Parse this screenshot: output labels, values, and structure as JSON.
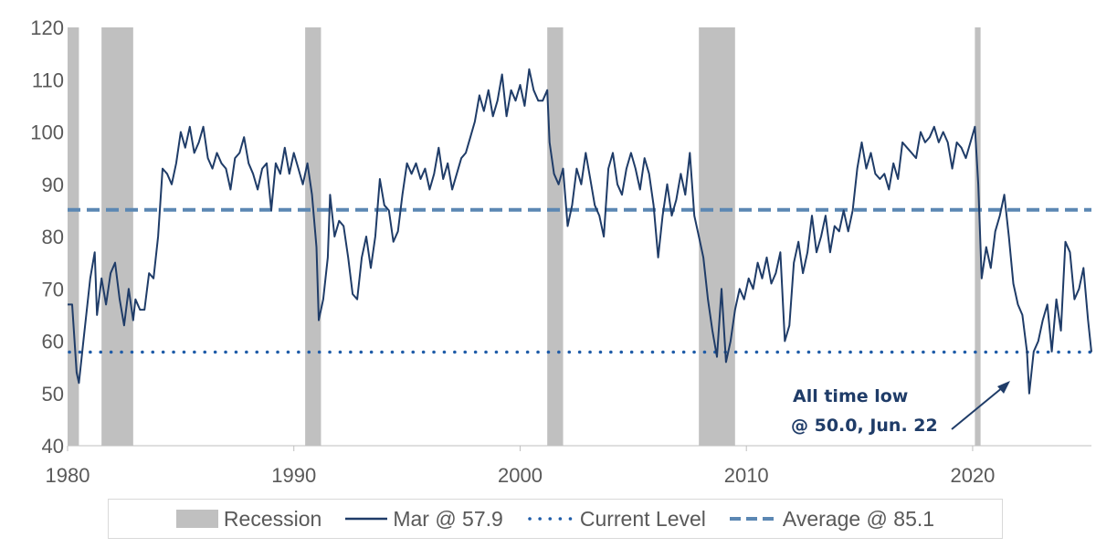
{
  "chart_data": {
    "type": "line",
    "title": "",
    "xlabel": "",
    "ylabel": "",
    "xlim": [
      1980,
      2025.25
    ],
    "ylim": [
      40,
      120
    ],
    "yticks": [
      40,
      50,
      60,
      70,
      80,
      90,
      100,
      110,
      120
    ],
    "xticks": [
      1980,
      1990,
      2000,
      2010,
      2020
    ],
    "ytick_labels": [
      "40",
      "50",
      "60",
      "70",
      "80",
      "90",
      "100",
      "110",
      "120"
    ],
    "xtick_labels": [
      "1980",
      "1990",
      "2000",
      "2010",
      "2020"
    ],
    "recessions": [
      [
        1980.0,
        1980.5
      ],
      [
        1981.5,
        1982.9
      ],
      [
        1990.5,
        1991.2
      ],
      [
        2001.2,
        2001.9
      ],
      [
        2007.9,
        2009.5
      ],
      [
        2020.1,
        2020.35
      ]
    ],
    "series": [
      {
        "name": "Mar @ 57.9",
        "style": "solid",
        "color": "#1f3c68",
        "points": [
          [
            1980.0,
            67
          ],
          [
            1980.2,
            67
          ],
          [
            1980.4,
            54
          ],
          [
            1980.5,
            52
          ],
          [
            1980.7,
            60
          ],
          [
            1981.0,
            72
          ],
          [
            1981.2,
            77
          ],
          [
            1981.3,
            65
          ],
          [
            1981.5,
            72
          ],
          [
            1981.7,
            67
          ],
          [
            1981.9,
            73
          ],
          [
            1982.1,
            75
          ],
          [
            1982.3,
            68
          ],
          [
            1982.5,
            63
          ],
          [
            1982.7,
            70
          ],
          [
            1982.9,
            64
          ],
          [
            1983.0,
            68
          ],
          [
            1983.2,
            66
          ],
          [
            1983.4,
            66
          ],
          [
            1983.6,
            73
          ],
          [
            1983.8,
            72
          ],
          [
            1984.0,
            80
          ],
          [
            1984.2,
            93
          ],
          [
            1984.4,
            92
          ],
          [
            1984.6,
            90
          ],
          [
            1984.8,
            94
          ],
          [
            1985.0,
            100
          ],
          [
            1985.2,
            97
          ],
          [
            1985.4,
            101
          ],
          [
            1985.6,
            96
          ],
          [
            1985.8,
            98
          ],
          [
            1986.0,
            101
          ],
          [
            1986.2,
            95
          ],
          [
            1986.4,
            93
          ],
          [
            1986.6,
            96
          ],
          [
            1986.8,
            94
          ],
          [
            1987.0,
            93
          ],
          [
            1987.2,
            89
          ],
          [
            1987.4,
            95
          ],
          [
            1987.6,
            96
          ],
          [
            1987.8,
            99
          ],
          [
            1988.0,
            94
          ],
          [
            1988.2,
            92
          ],
          [
            1988.4,
            89
          ],
          [
            1988.6,
            93
          ],
          [
            1988.8,
            94
          ],
          [
            1989.0,
            85
          ],
          [
            1989.2,
            94
          ],
          [
            1989.4,
            92
          ],
          [
            1989.6,
            97
          ],
          [
            1989.8,
            92
          ],
          [
            1990.0,
            96
          ],
          [
            1990.2,
            93
          ],
          [
            1990.4,
            90
          ],
          [
            1990.6,
            94
          ],
          [
            1990.8,
            88
          ],
          [
            1991.0,
            78
          ],
          [
            1991.1,
            64
          ],
          [
            1991.3,
            68
          ],
          [
            1991.5,
            76
          ],
          [
            1991.6,
            88
          ],
          [
            1991.8,
            80
          ],
          [
            1992.0,
            83
          ],
          [
            1992.2,
            82
          ],
          [
            1992.4,
            76
          ],
          [
            1992.6,
            69
          ],
          [
            1992.8,
            68
          ],
          [
            1993.0,
            76
          ],
          [
            1993.2,
            80
          ],
          [
            1993.4,
            74
          ],
          [
            1993.6,
            80
          ],
          [
            1993.8,
            91
          ],
          [
            1994.0,
            86
          ],
          [
            1994.2,
            85
          ],
          [
            1994.4,
            79
          ],
          [
            1994.6,
            81
          ],
          [
            1994.8,
            88
          ],
          [
            1995.0,
            94
          ],
          [
            1995.2,
            92
          ],
          [
            1995.4,
            94
          ],
          [
            1995.6,
            91
          ],
          [
            1995.8,
            93
          ],
          [
            1996.0,
            89
          ],
          [
            1996.2,
            92
          ],
          [
            1996.4,
            97
          ],
          [
            1996.6,
            91
          ],
          [
            1996.8,
            94
          ],
          [
            1997.0,
            89
          ],
          [
            1997.2,
            92
          ],
          [
            1997.4,
            95
          ],
          [
            1997.6,
            96
          ],
          [
            1997.8,
            99
          ],
          [
            1998.0,
            102
          ],
          [
            1998.2,
            107
          ],
          [
            1998.4,
            104
          ],
          [
            1998.6,
            108
          ],
          [
            1998.8,
            103
          ],
          [
            1999.0,
            106
          ],
          [
            1999.2,
            111
          ],
          [
            1999.4,
            103
          ],
          [
            1999.6,
            108
          ],
          [
            1999.8,
            106
          ],
          [
            2000.0,
            109
          ],
          [
            2000.2,
            105
          ],
          [
            2000.4,
            112
          ],
          [
            2000.6,
            108
          ],
          [
            2000.8,
            106
          ],
          [
            2001.0,
            106
          ],
          [
            2001.2,
            108
          ],
          [
            2001.3,
            98
          ],
          [
            2001.5,
            92
          ],
          [
            2001.7,
            90
          ],
          [
            2001.9,
            93
          ],
          [
            2002.1,
            82
          ],
          [
            2002.3,
            86
          ],
          [
            2002.5,
            93
          ],
          [
            2002.7,
            90
          ],
          [
            2002.9,
            96
          ],
          [
            2003.1,
            91
          ],
          [
            2003.3,
            86
          ],
          [
            2003.5,
            84
          ],
          [
            2003.7,
            80
          ],
          [
            2003.9,
            93
          ],
          [
            2004.1,
            96
          ],
          [
            2004.3,
            90
          ],
          [
            2004.5,
            88
          ],
          [
            2004.7,
            93
          ],
          [
            2004.9,
            96
          ],
          [
            2005.1,
            93
          ],
          [
            2005.3,
            89
          ],
          [
            2005.5,
            95
          ],
          [
            2005.7,
            92
          ],
          [
            2005.9,
            86
          ],
          [
            2006.1,
            76
          ],
          [
            2006.3,
            84
          ],
          [
            2006.5,
            90
          ],
          [
            2006.7,
            84
          ],
          [
            2006.9,
            87
          ],
          [
            2007.1,
            92
          ],
          [
            2007.3,
            88
          ],
          [
            2007.5,
            96
          ],
          [
            2007.7,
            84
          ],
          [
            2007.9,
            80
          ],
          [
            2008.1,
            76
          ],
          [
            2008.3,
            68
          ],
          [
            2008.5,
            62
          ],
          [
            2008.7,
            57
          ],
          [
            2008.9,
            70
          ],
          [
            2009.1,
            56
          ],
          [
            2009.3,
            60
          ],
          [
            2009.5,
            66
          ],
          [
            2009.7,
            70
          ],
          [
            2009.9,
            68
          ],
          [
            2010.1,
            72
          ],
          [
            2010.3,
            70
          ],
          [
            2010.5,
            75
          ],
          [
            2010.7,
            72
          ],
          [
            2010.9,
            76
          ],
          [
            2011.1,
            71
          ],
          [
            2011.3,
            73
          ],
          [
            2011.5,
            77
          ],
          [
            2011.7,
            60
          ],
          [
            2011.9,
            63
          ],
          [
            2012.1,
            75
          ],
          [
            2012.3,
            79
          ],
          [
            2012.5,
            73
          ],
          [
            2012.7,
            77
          ],
          [
            2012.9,
            84
          ],
          [
            2013.1,
            77
          ],
          [
            2013.3,
            80
          ],
          [
            2013.5,
            84
          ],
          [
            2013.7,
            77
          ],
          [
            2013.9,
            82
          ],
          [
            2014.1,
            81
          ],
          [
            2014.3,
            85
          ],
          [
            2014.5,
            81
          ],
          [
            2014.7,
            85
          ],
          [
            2014.9,
            93
          ],
          [
            2015.1,
            98
          ],
          [
            2015.3,
            93
          ],
          [
            2015.5,
            96
          ],
          [
            2015.7,
            92
          ],
          [
            2015.9,
            91
          ],
          [
            2016.1,
            92
          ],
          [
            2016.3,
            89
          ],
          [
            2016.5,
            94
          ],
          [
            2016.7,
            91
          ],
          [
            2016.9,
            98
          ],
          [
            2017.1,
            97
          ],
          [
            2017.3,
            96
          ],
          [
            2017.5,
            95
          ],
          [
            2017.7,
            100
          ],
          [
            2017.9,
            98
          ],
          [
            2018.1,
            99
          ],
          [
            2018.3,
            101
          ],
          [
            2018.5,
            98
          ],
          [
            2018.7,
            100
          ],
          [
            2018.9,
            98
          ],
          [
            2019.1,
            93
          ],
          [
            2019.3,
            98
          ],
          [
            2019.5,
            97
          ],
          [
            2019.7,
            95
          ],
          [
            2019.9,
            98
          ],
          [
            2020.1,
            101
          ],
          [
            2020.25,
            90
          ],
          [
            2020.4,
            72
          ],
          [
            2020.6,
            78
          ],
          [
            2020.8,
            74
          ],
          [
            2021.0,
            81
          ],
          [
            2021.2,
            84
          ],
          [
            2021.4,
            88
          ],
          [
            2021.6,
            80
          ],
          [
            2021.8,
            71
          ],
          [
            2022.0,
            67
          ],
          [
            2022.2,
            65
          ],
          [
            2022.4,
            58
          ],
          [
            2022.5,
            50
          ],
          [
            2022.7,
            58
          ],
          [
            2022.9,
            60
          ],
          [
            2023.1,
            64
          ],
          [
            2023.3,
            67
          ],
          [
            2023.5,
            58
          ],
          [
            2023.7,
            68
          ],
          [
            2023.9,
            62
          ],
          [
            2024.1,
            79
          ],
          [
            2024.3,
            77
          ],
          [
            2024.5,
            68
          ],
          [
            2024.7,
            70
          ],
          [
            2024.9,
            74
          ],
          [
            2025.1,
            64
          ],
          [
            2025.25,
            57.9
          ]
        ]
      },
      {
        "name": "Current Level",
        "style": "dotted",
        "color": "#1f5ca8",
        "value": 57.9
      },
      {
        "name": "Average @ 85.1",
        "style": "dashed",
        "color": "#5b87b3",
        "value": 85.1
      }
    ],
    "annotation": {
      "lines": [
        "All time low",
        "@ 50.0, Jun. 22"
      ],
      "target": [
        2022.5,
        50.0
      ]
    },
    "legend_position": "bottom"
  },
  "legend": {
    "recession": "Recession",
    "series": "Mar @ 57.9",
    "current": "Current Level",
    "average": "Average @ 85.1"
  },
  "colors": {
    "line": "#1f3c68",
    "current": "#1f5ca8",
    "average": "#5b87b3",
    "recession": "#c0c0c0",
    "annotation": "#1f3c68"
  }
}
